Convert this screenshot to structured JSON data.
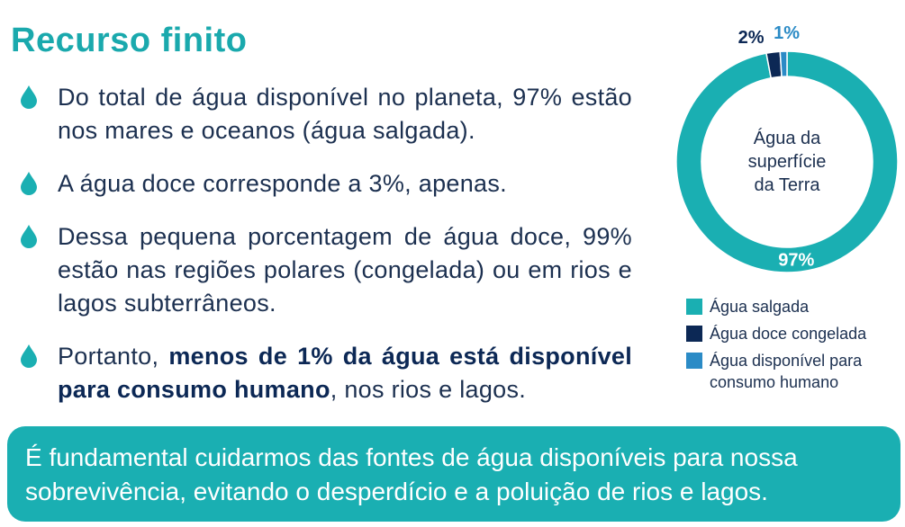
{
  "title": "Recurso finito",
  "bullets": [
    {
      "parts": [
        {
          "text": "Do total de água disponível no planeta, 97% estão nos mares e oceanos (água salgada).",
          "bold": false
        }
      ]
    },
    {
      "parts": [
        {
          "text": "A água doce corresponde a 3%, apenas.",
          "bold": false
        }
      ]
    },
    {
      "parts": [
        {
          "text": "Dessa pequena porcentagem de água doce, 99% estão nas regiões polares (congelada) ou em rios e lagos subterrâneos.",
          "bold": false
        }
      ]
    },
    {
      "parts": [
        {
          "text": "Portanto, ",
          "bold": false
        },
        {
          "text": "menos de 1% da água está disponível para consumo humano",
          "bold": true
        },
        {
          "text": ", nos rios e lagos.",
          "bold": false
        }
      ]
    }
  ],
  "chart_data": {
    "type": "donut",
    "center_label": "Água da superfície da Terra",
    "categories": [
      "Água salgada",
      "Água doce congelada",
      "Água disponível para consumo humano"
    ],
    "values": [
      97,
      2,
      1
    ],
    "value_labels": [
      "97%",
      "2%",
      "1%"
    ],
    "colors": [
      "#1aafb2",
      "#0c2855",
      "#2b8bc6"
    ]
  },
  "footer": "É fundamental cuidarmos das fontes de água disponíveis para nossa sobrevivência, evitando o desperdício e a poluição de rios e lagos."
}
